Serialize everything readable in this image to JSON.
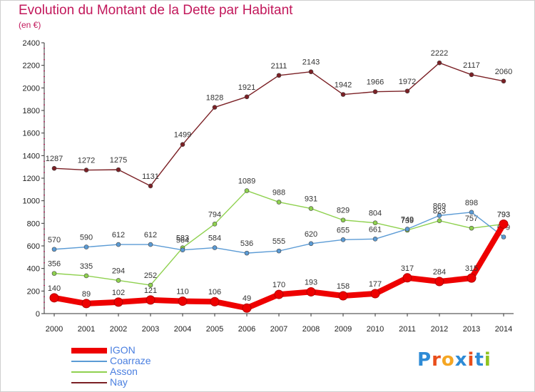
{
  "title": "Evolution du Montant de la Dette par Habitant",
  "subtitle": "(en €)",
  "brand": "Proxiti",
  "chart_data": {
    "type": "line",
    "x": [
      "2000",
      "2001",
      "2002",
      "2003",
      "2004",
      "2005",
      "2006",
      "2007",
      "2008",
      "2009",
      "2010",
      "2011",
      "2012",
      "2013",
      "2014"
    ],
    "ylim": [
      0,
      2400
    ],
    "yticks": [
      0,
      200,
      400,
      600,
      800,
      1000,
      1200,
      1400,
      1600,
      1800,
      2000,
      2200,
      2400
    ],
    "grid": false,
    "legend_position": "bottom-left",
    "series": [
      {
        "name": "IGON",
        "color": "#ee0000",
        "values": [
          140,
          89,
          102,
          121,
          110,
          106,
          49,
          170,
          193,
          158,
          177,
          317,
          284,
          315,
          793
        ]
      },
      {
        "name": "Coarraze",
        "color": "#5b9bd5",
        "values": [
          570,
          590,
          612,
          612,
          564,
          584,
          536,
          555,
          620,
          655,
          661,
          749,
          869,
          898,
          679
        ]
      },
      {
        "name": "Asson",
        "color": "#8fd14f",
        "values": [
          356,
          335,
          294,
          252,
          583,
          794,
          1089,
          988,
          931,
          829,
          804,
          739,
          823,
          757,
          793
        ]
      },
      {
        "name": "Nay",
        "color": "#7b2025",
        "values": [
          1287,
          1272,
          1275,
          1131,
          1499,
          1828,
          1921,
          2111,
          2143,
          1942,
          1966,
          1972,
          2222,
          2117,
          2060
        ]
      }
    ]
  }
}
